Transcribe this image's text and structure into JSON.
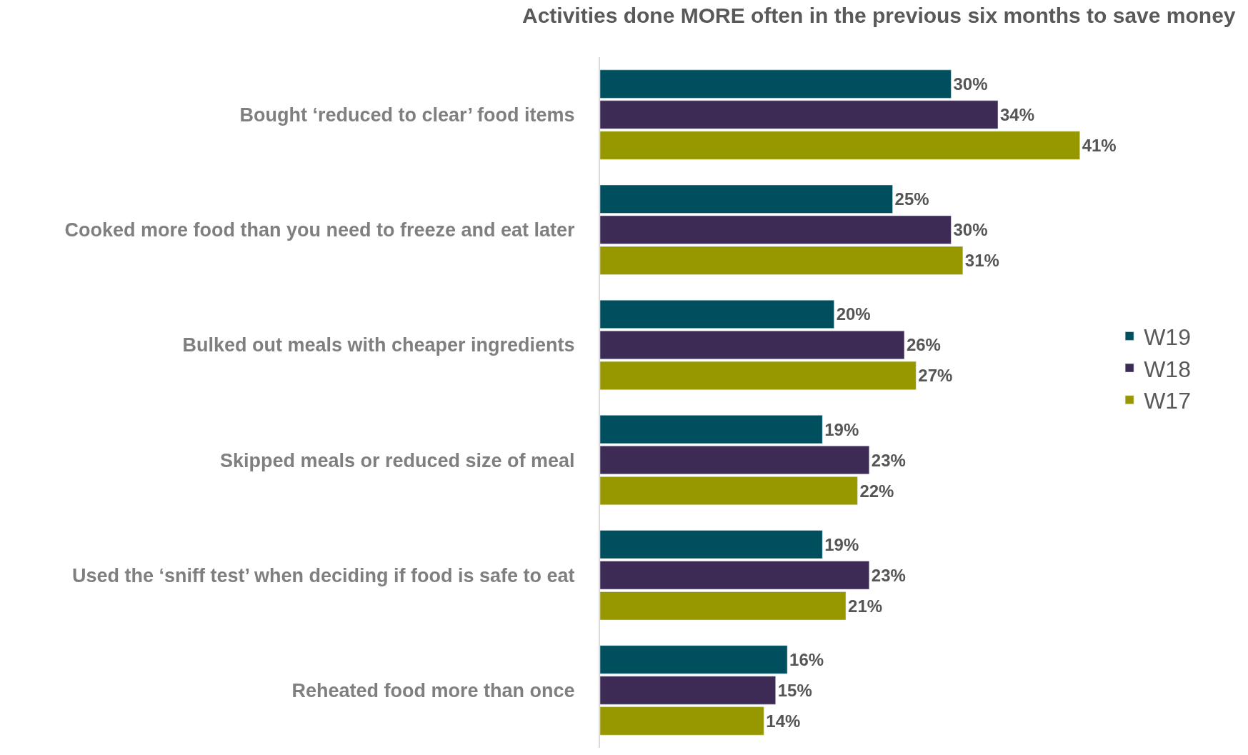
{
  "chart_data": {
    "type": "bar",
    "orientation": "horizontal",
    "title": "Activities done MORE often in the previous six months to save money",
    "categories": [
      "Bought ‘reduced to clear’ food items",
      "Cooked more food than you need to freeze and eat later",
      "Bulked out meals with cheaper ingredients",
      "Skipped meals or reduced size of meal",
      "Used the ‘sniff test’ when deciding if food is safe to eat",
      "Reheated food more than once"
    ],
    "series": [
      {
        "name": "W19",
        "color": "#004f5e",
        "values": [
          30,
          25,
          20,
          19,
          19,
          16
        ],
        "value_labels": [
          "30%",
          "25%",
          "20%",
          "19%",
          "19%",
          "16%"
        ]
      },
      {
        "name": "W18",
        "color": "#3d2b56",
        "values": [
          34,
          30,
          26,
          23,
          23,
          15
        ],
        "value_labels": [
          "34%",
          "30%",
          "26%",
          "23%",
          "23%",
          "15%"
        ]
      },
      {
        "name": "W17",
        "color": "#979800",
        "values": [
          41,
          31,
          27,
          22,
          21,
          14
        ],
        "value_labels": [
          "41%",
          "31%",
          "27%",
          "22%",
          "21%",
          "14%"
        ]
      }
    ],
    "tick_labels": "y",
    "legend": "right"
  }
}
